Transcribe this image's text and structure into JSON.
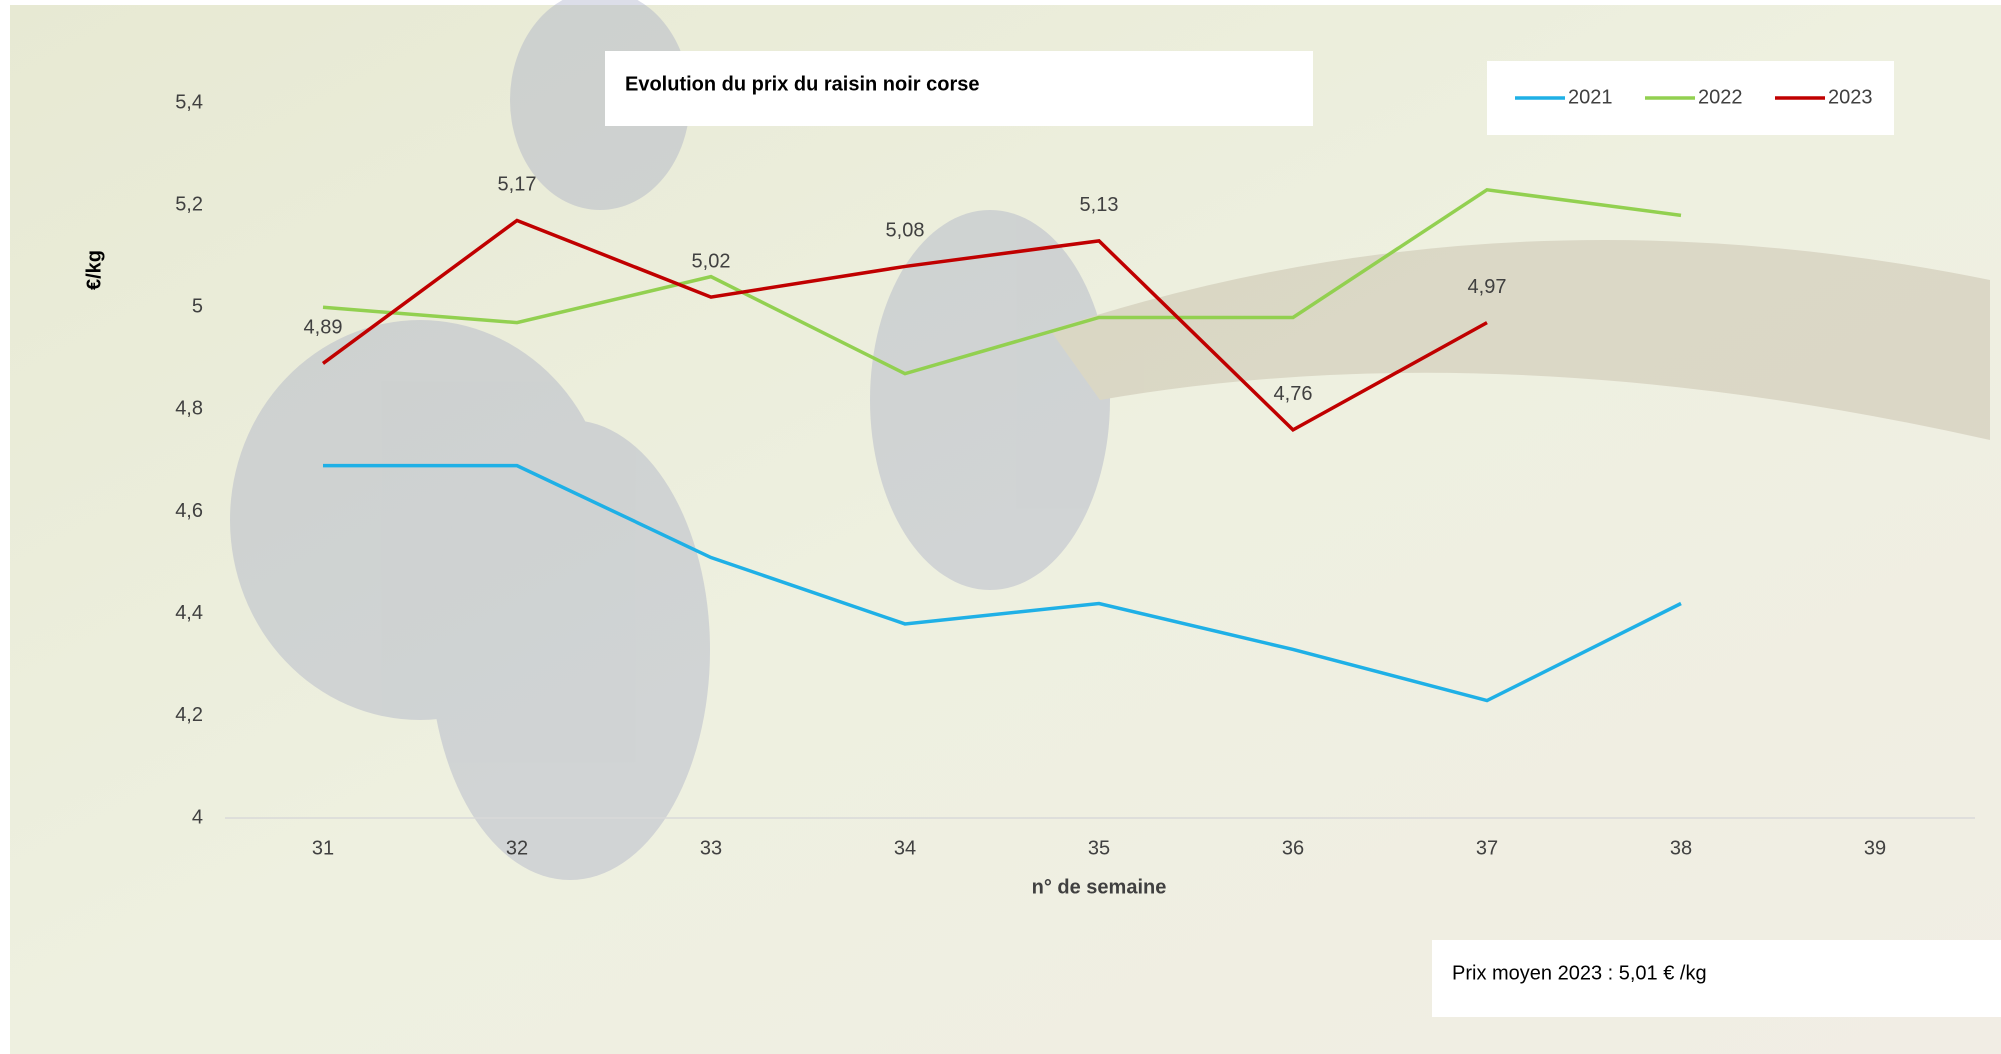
{
  "chart_data": {
    "type": "line",
    "title": "Evolution du prix du raisin noir corse",
    "y_label": "€/kg",
    "x_label": "n° de semaine",
    "annotation": "Prix moyen 2023 : 5,01 € /kg",
    "categories": [
      "31",
      "32",
      "33",
      "34",
      "35",
      "36",
      "37",
      "38",
      "39"
    ],
    "ylim": [
      4,
      5.4
    ],
    "yticks": [
      4,
      {
        "value": 4.2,
        "label": "4,2"
      },
      {
        "value": 4.4,
        "label": "4,4"
      },
      {
        "value": 4.6,
        "label": "4,6"
      },
      {
        "value": 4.8,
        "label": "4,8"
      },
      5,
      {
        "value": 5.2,
        "label": "5,2"
      },
      {
        "value": 5.4,
        "label": "5,4"
      }
    ],
    "series": [
      {
        "name": "2021",
        "color": "#1fb0e6",
        "values": [
          4.69,
          4.69,
          4.51,
          4.38,
          4.42,
          4.33,
          4.23,
          4.42,
          null
        ]
      },
      {
        "name": "2022",
        "color": "#92d050",
        "values": [
          5.0,
          4.97,
          5.06,
          4.87,
          4.98,
          4.98,
          5.23,
          5.18,
          null
        ]
      },
      {
        "name": "2023",
        "color": "#c00000",
        "values": [
          4.89,
          5.17,
          5.02,
          5.08,
          5.13,
          4.76,
          4.97,
          null,
          null
        ],
        "value_labels": [
          "4,89",
          "5,17",
          "5,02",
          "5,08",
          "5,13",
          "4,76",
          "4,97",
          null,
          null
        ]
      }
    ]
  }
}
